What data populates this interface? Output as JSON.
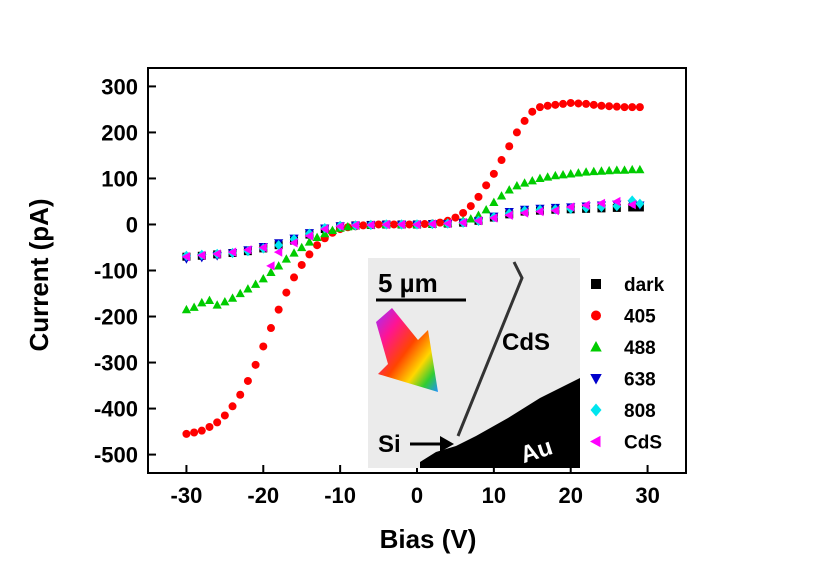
{
  "chart_data": {
    "type": "scatter",
    "xlabel": "Bias (V)",
    "ylabel": "Current (pA)",
    "xlim": [
      -35,
      35
    ],
    "ylim": [
      -540,
      340
    ],
    "xticks": [
      -30,
      -20,
      -10,
      0,
      10,
      20,
      30
    ],
    "yticks": [
      300,
      200,
      100,
      0,
      -100,
      -200,
      -300,
      -400,
      -500
    ],
    "grid": false,
    "legend_position": "right, inside plot",
    "series": [
      {
        "name": "dark",
        "marker": "square",
        "color": "#000000",
        "x": [
          -30,
          -28,
          -26,
          -24,
          -22,
          -20,
          -18,
          -16,
          -14,
          -12,
          -10,
          -8,
          -6,
          -4,
          -2,
          0,
          2,
          4,
          6,
          8,
          10,
          12,
          14,
          16,
          18,
          20,
          22,
          24,
          26,
          28,
          29
        ],
        "y": [
          -70,
          -68,
          -65,
          -62,
          -58,
          -52,
          -45,
          -35,
          -22,
          -10,
          -4,
          -2,
          -1,
          0,
          0,
          0,
          1,
          2,
          4,
          8,
          15,
          22,
          28,
          30,
          32,
          33,
          34,
          35,
          36,
          37,
          37
        ]
      },
      {
        "name": "405",
        "marker": "circle",
        "color": "#ff0000",
        "x": [
          -30,
          -29,
          -28,
          -27,
          -26,
          -25,
          -24,
          -23,
          -22,
          -21,
          -20,
          -19,
          -18,
          -17,
          -16,
          -15,
          -14,
          -13,
          -12,
          -11,
          -10,
          -9,
          -8,
          -7,
          -6,
          -5,
          -4,
          -3,
          -2,
          -1,
          0,
          1,
          2,
          3,
          4,
          5,
          6,
          7,
          8,
          9,
          10,
          11,
          12,
          13,
          14,
          15,
          16,
          17,
          18,
          19,
          20,
          21,
          22,
          23,
          24,
          25,
          26,
          27,
          28,
          29
        ],
        "y": [
          -455,
          -452,
          -448,
          -440,
          -430,
          -415,
          -395,
          -370,
          -340,
          -305,
          -265,
          -225,
          -185,
          -148,
          -115,
          -88,
          -65,
          -45,
          -30,
          -18,
          -10,
          -6,
          -4,
          -2,
          -1,
          0,
          0,
          0,
          0,
          0,
          0,
          1,
          2,
          4,
          8,
          15,
          25,
          40,
          60,
          85,
          110,
          140,
          170,
          200,
          225,
          245,
          255,
          258,
          260,
          262,
          264,
          263,
          262,
          260,
          258,
          257,
          256,
          255,
          255,
          255
        ]
      },
      {
        "name": "488",
        "marker": "triangle-up",
        "color": "#00cc00",
        "x": [
          -30,
          -29,
          -28,
          -27,
          -26,
          -25,
          -24,
          -23,
          -22,
          -21,
          -20,
          -19,
          -18,
          -17,
          -16,
          -15,
          -14,
          -13,
          -12,
          -11,
          -10,
          -9,
          -8,
          -6,
          -4,
          -2,
          0,
          2,
          4,
          6,
          7,
          8,
          9,
          10,
          11,
          12,
          13,
          14,
          15,
          16,
          17,
          18,
          19,
          20,
          21,
          22,
          23,
          24,
          25,
          26,
          27,
          28,
          29
        ],
        "y": [
          -185,
          -180,
          -170,
          -165,
          -175,
          -168,
          -160,
          -150,
          -140,
          -130,
          -118,
          -104,
          -90,
          -75,
          -62,
          -50,
          -38,
          -28,
          -20,
          -13,
          -8,
          -5,
          -3,
          -1,
          0,
          0,
          0,
          1,
          3,
          8,
          12,
          20,
          32,
          48,
          62,
          75,
          84,
          90,
          95,
          100,
          103,
          106,
          108,
          110,
          112,
          114,
          115,
          116,
          117,
          118,
          118,
          119,
          119
        ]
      },
      {
        "name": "638",
        "marker": "triangle-down",
        "color": "#0000cc",
        "x": [
          -30,
          -28,
          -26,
          -24,
          -22,
          -20,
          -18,
          -16,
          -14,
          -12,
          -10,
          -8,
          -6,
          -4,
          -2,
          0,
          2,
          4,
          6,
          8,
          10,
          12,
          14,
          16,
          18,
          20,
          22,
          24,
          26,
          28,
          29
        ],
        "y": [
          -75,
          -72,
          -68,
          -62,
          -55,
          -48,
          -40,
          -30,
          -18,
          -8,
          -3,
          -2,
          -1,
          0,
          0,
          0,
          1,
          2,
          4,
          8,
          18,
          28,
          33,
          35,
          37,
          38,
          40,
          42,
          44,
          45,
          42
        ]
      },
      {
        "name": "808",
        "marker": "diamond",
        "color": "#00e5ee",
        "x": [
          -30,
          -28,
          -26,
          -24,
          -22,
          -20,
          -18,
          -16,
          -14,
          -12,
          -10,
          -8,
          -6,
          -4,
          -2,
          0,
          2,
          4,
          6,
          8,
          10,
          12,
          14,
          16,
          18,
          20,
          22,
          24,
          26,
          28,
          29
        ],
        "y": [
          -68,
          -66,
          -64,
          -62,
          -58,
          -52,
          -45,
          -32,
          -20,
          -8,
          -3,
          -2,
          -1,
          0,
          0,
          0,
          1,
          2,
          4,
          8,
          16,
          24,
          30,
          32,
          33,
          34,
          36,
          38,
          40,
          52,
          45
        ]
      },
      {
        "name": "CdS",
        "marker": "triangle-left",
        "color": "#ff00ff",
        "x": [
          -30,
          -28,
          -26,
          -24,
          -22,
          -20,
          -19,
          -18,
          -16,
          -14,
          -12,
          -10,
          -8,
          -6,
          -4,
          -2,
          0,
          2,
          4,
          6,
          8,
          10,
          12,
          14,
          16,
          18,
          20,
          22,
          24,
          26,
          28
        ],
        "y": [
          -70,
          -67,
          -64,
          -60,
          -55,
          -50,
          -90,
          -60,
          -40,
          -25,
          -10,
          -4,
          -2,
          -1,
          0,
          0,
          0,
          1,
          2,
          4,
          8,
          14,
          20,
          25,
          28,
          30,
          38,
          42,
          46,
          50,
          43
        ]
      }
    ]
  },
  "inset": {
    "scale_bar_label": "5 µm",
    "label_cds": "CdS",
    "label_si": "Si",
    "label_au": "Au"
  },
  "colors": {
    "dark": "#000000",
    "405": "#ff0000",
    "488": "#00cc00",
    "638": "#0000cc",
    "808": "#00e5ee",
    "CdS": "#ff00ff"
  }
}
